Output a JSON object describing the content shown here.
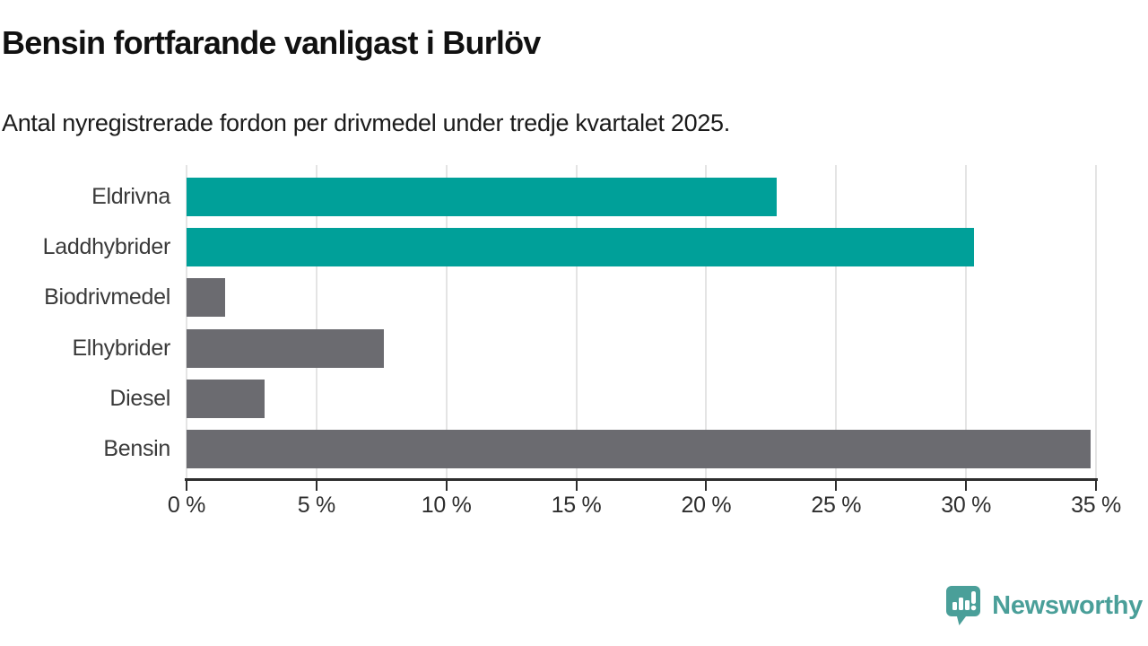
{
  "chart_data": {
    "type": "bar",
    "orientation": "horizontal",
    "title": "Bensin fortfarande vanligast i Burlöv",
    "subtitle": "Antal nyregistrerade fordon per drivmedel under tredje kvartalet 2025.",
    "categories": [
      "Eldrivna",
      "Laddhybrider",
      "Biodrivmedel",
      "Elhybrider",
      "Diesel",
      "Bensin"
    ],
    "values": [
      22.7,
      30.3,
      1.5,
      7.6,
      3.0,
      34.8
    ],
    "unit": "%",
    "xlabel": "",
    "ylabel": "",
    "xlim": [
      0,
      35
    ],
    "x_ticks": [
      {
        "label": "0 %",
        "value": 0
      },
      {
        "label": "5 %",
        "value": 5
      },
      {
        "label": "10 %",
        "value": 10
      },
      {
        "label": "15 %",
        "value": 15
      },
      {
        "label": "20 %",
        "value": 20
      },
      {
        "label": "25 %",
        "value": 25
      },
      {
        "label": "30 %",
        "value": 30
      },
      {
        "label": "35 %",
        "value": 35
      }
    ],
    "bar_colors": [
      "#00a099",
      "#00a099",
      "#6b6b70",
      "#6b6b70",
      "#6b6b70",
      "#6b6b70"
    ],
    "colors": {
      "highlight": "#00a099",
      "default": "#6b6b70",
      "grid": "#e4e4e4",
      "axis": "#2d2d2d",
      "category_label": "#3a3a3a"
    },
    "grid": true,
    "legend": false
  },
  "footer": {
    "brand": "Newsworthy",
    "brand_color": "#4a9f99",
    "logo_icon": "newsworthy-speech-bubble-barchart-icon"
  }
}
